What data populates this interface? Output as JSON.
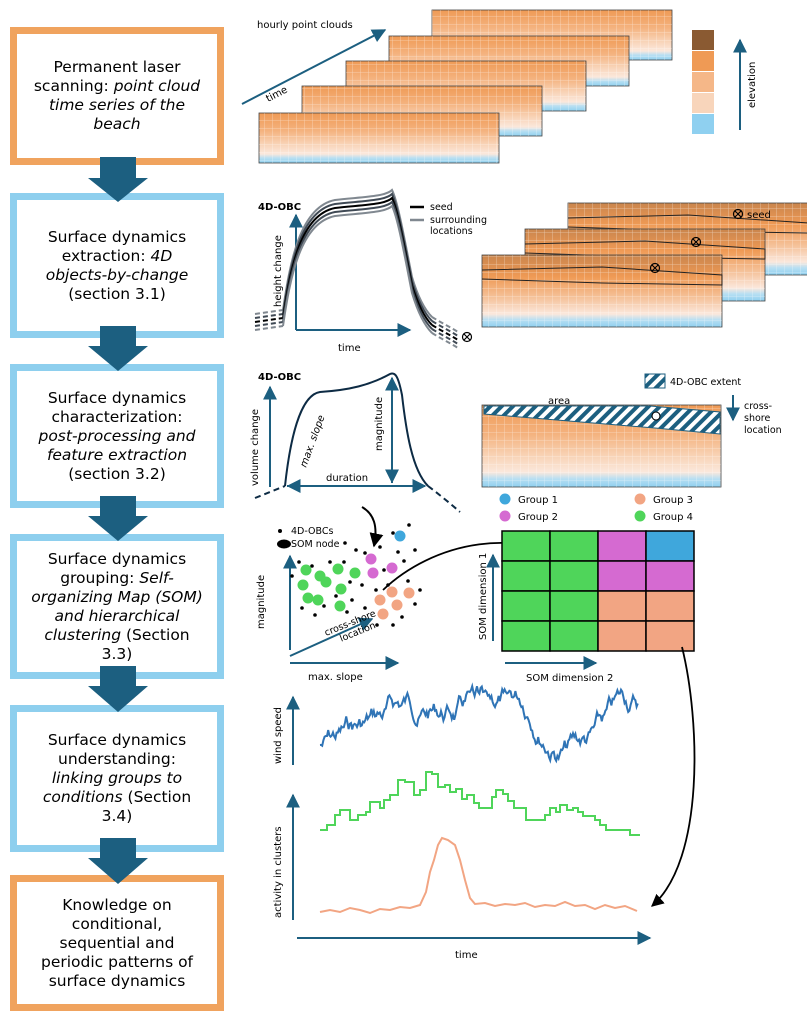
{
  "flowchart": {
    "box1": {
      "plain": "Permanent laser scanning: ",
      "italic": "point cloud time series of the beach",
      "after": ""
    },
    "box2": {
      "plain": "Surface dynamics extraction: ",
      "italic": "4D objects-by-change",
      "after": " (section 3.1)"
    },
    "box3": {
      "plain": "Surface dynamics characterization: ",
      "italic": "post-processing and feature extraction",
      "after": " (section 3.2)"
    },
    "box4": {
      "plain": "Surface dynamics grouping: ",
      "italic": "Self-organizing Map (SOM) and hierarchical clustering",
      "after": " (Section 3.3)"
    },
    "box5": {
      "plain": "Surface dynamics understanding: ",
      "italic": "linking groups to conditions",
      "after": " (Section 3.4)"
    },
    "box6": {
      "plain": "Knowledge on conditional, sequential and periodic patterns of surface dynamics",
      "italic": "",
      "after": ""
    }
  },
  "panel1": {
    "title": "hourly point clouds",
    "time_label": "time",
    "elevation_label": "elevation",
    "colorbar": [
      "#8a5a32",
      "#ef9a55",
      "#f5b788",
      "#f8d5bb",
      "#8fd0f0"
    ]
  },
  "panel2": {
    "title": "4D-OBC",
    "legend_seed": "seed",
    "legend_surrounding": "surrounding locations",
    "ylabel": "height change",
    "xlabel": "time",
    "seed_marker": "seed"
  },
  "panel3": {
    "title": "4D-OBC",
    "ylabel": "volume change",
    "magnitude": "magnitude",
    "max_slope": "max. slope",
    "duration": "duration",
    "legend_extent": "4D-OBC extent",
    "area": "area",
    "cross_shore": "cross-shore location"
  },
  "panel4": {
    "legend_obcs": "4D-OBCs",
    "legend_node": "SOM node",
    "ylabel": "magnitude",
    "xlabel": "max. slope",
    "diag_label": "cross-shore location",
    "groups": [
      {
        "name": "Group 1",
        "color": "#3fa7dc"
      },
      {
        "name": "Group 2",
        "color": "#d56ad1"
      },
      {
        "name": "Group 3",
        "color": "#f2a583"
      },
      {
        "name": "Group 4",
        "color": "#4fd55a"
      }
    ],
    "som_xlabel": "SOM dimension 2",
    "som_ylabel": "SOM dimension 1",
    "som_grid": [
      [
        4,
        4,
        2,
        1
      ],
      [
        4,
        4,
        2,
        2
      ],
      [
        4,
        4,
        3,
        3
      ],
      [
        4,
        4,
        3,
        3
      ]
    ]
  },
  "panel5": {
    "ylabel_wind": "wind speed",
    "ylabel_activity": "activity in clusters",
    "xlabel": "time"
  }
}
